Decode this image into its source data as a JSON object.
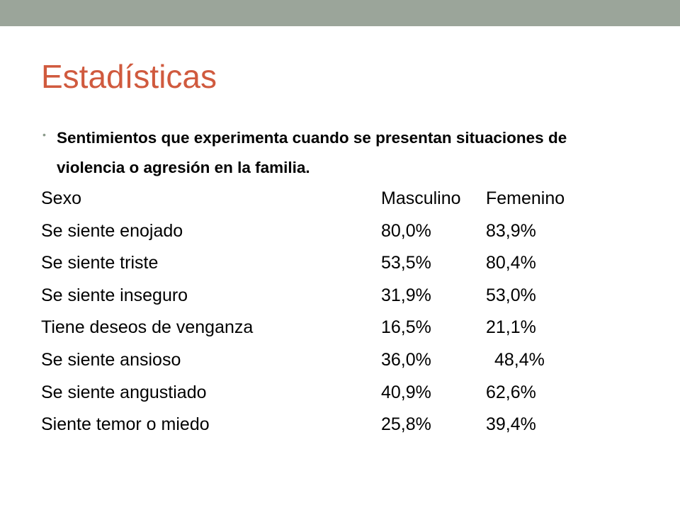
{
  "slide": {
    "title": "Estadísticas",
    "bullet": "Sentimientos que experimenta cuando se presentan situaciones de violencia o agresión en la familia.",
    "table": {
      "header": [
        "Sexo",
        "Masculino",
        "Femenino"
      ],
      "rows": [
        [
          "Se siente enojado",
          "80,0%",
          "83,9%"
        ],
        [
          "Se siente triste",
          "53,5%",
          "80,4%"
        ],
        [
          "Se siente inseguro",
          "31,9%",
          "53,0%"
        ],
        [
          "Tiene deseos de venganza",
          "16,5%",
          "21,1%"
        ],
        [
          "Se siente ansioso",
          "36,0%",
          "48,4%"
        ],
        [
          "Se siente angustiado",
          "40,9%",
          "62,6%"
        ],
        [
          "Siente temor o miedo",
          "25,8%",
          "39,4%"
        ]
      ]
    }
  }
}
